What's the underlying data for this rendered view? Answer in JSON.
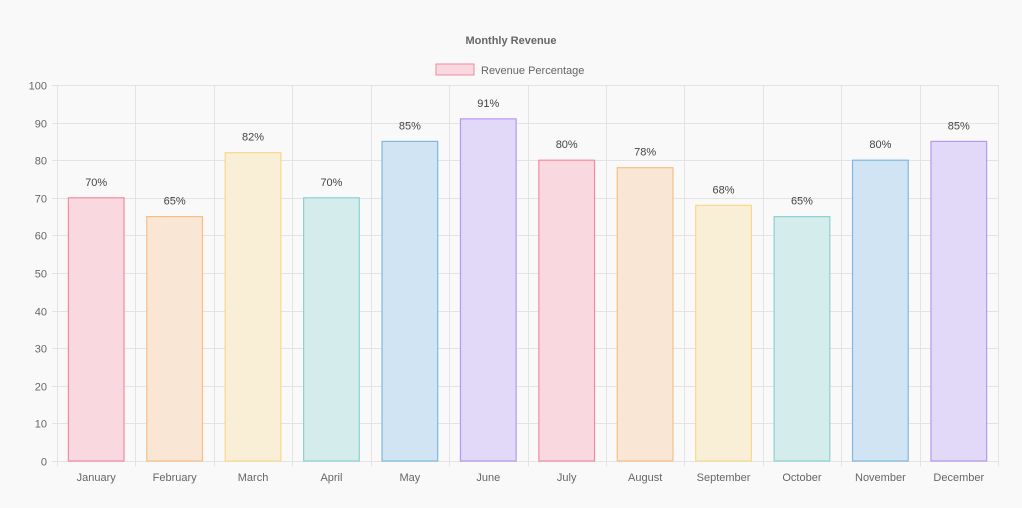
{
  "chart_data": {
    "type": "bar",
    "title": "Monthly Revenue",
    "legend": {
      "label": "Revenue Percentage",
      "position": "top",
      "fill": "#f9d9df",
      "stroke": "#f08ca0"
    },
    "categories": [
      "January",
      "February",
      "March",
      "April",
      "May",
      "June",
      "July",
      "August",
      "September",
      "October",
      "November",
      "December"
    ],
    "series": [
      {
        "name": "Revenue Percentage",
        "values": [
          70,
          65,
          82,
          70,
          85,
          91,
          80,
          78,
          68,
          65,
          80,
          85
        ]
      }
    ],
    "data_labels": [
      "70%",
      "65%",
      "82%",
      "70%",
      "85%",
      "91%",
      "80%",
      "78%",
      "68%",
      "65%",
      "80%",
      "85%"
    ],
    "ylim": [
      0,
      100
    ],
    "yticks": [
      0,
      10,
      20,
      30,
      40,
      50,
      60,
      70,
      80,
      90,
      100
    ],
    "grid": true,
    "colors": {
      "fills": [
        "#f9d9df",
        "#f9e6d5",
        "#f9eed6",
        "#d4ecec",
        "#d0e4f3",
        "#e2d8f8",
        "#f9d9df",
        "#f9e6d5",
        "#f9eed6",
        "#d4ecec",
        "#d0e4f3",
        "#e2d8f8"
      ],
      "strokes": [
        "#f08ca0",
        "#f7bf86",
        "#f7d98a",
        "#8fd1d1",
        "#7fb8e0",
        "#b39af0",
        "#f08ca0",
        "#f7bf86",
        "#f7d98a",
        "#8fd1d1",
        "#7fb8e0",
        "#b39af0"
      ]
    }
  }
}
